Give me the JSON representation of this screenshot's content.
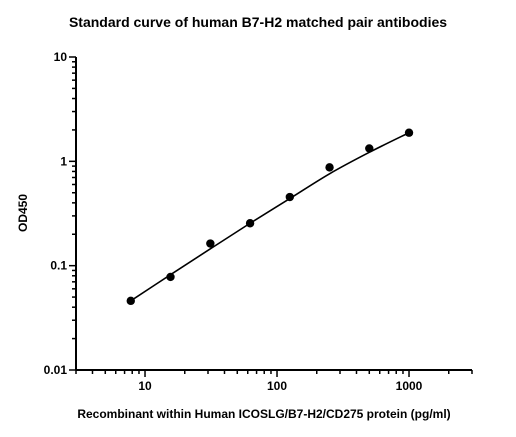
{
  "chart_data": {
    "type": "scatter",
    "title": "Standard curve of human B7-H2 matched pair antibodies",
    "xlabel": "Recombinant within Human ICOSLG/B7-H2/CD275 protein (pg/ml)",
    "ylabel": "OD450",
    "x_scale": "log",
    "y_scale": "log",
    "xlim": [
      3,
      3000
    ],
    "ylim": [
      0.01,
      10
    ],
    "x_ticks": [
      {
        "value": 10,
        "label": "10"
      },
      {
        "value": 100,
        "label": "100"
      },
      {
        "value": 1000,
        "label": "1000"
      }
    ],
    "y_ticks": [
      {
        "value": 0.01,
        "label": "0.01"
      },
      {
        "value": 0.1,
        "label": "0.1"
      },
      {
        "value": 1,
        "label": "1"
      },
      {
        "value": 10,
        "label": "10"
      }
    ],
    "grid": false,
    "legend": "none",
    "series": [
      {
        "x": [
          7.8,
          15.6,
          31.25,
          62.5,
          125,
          250,
          500,
          1000
        ],
        "y": [
          0.046,
          0.078,
          0.163,
          0.255,
          0.455,
          0.875,
          1.33,
          1.88
        ]
      }
    ],
    "fit_curve": {
      "x": [
        7.8,
        15.6,
        31.25,
        62.5,
        125,
        250,
        500,
        1000
      ],
      "y": [
        0.046,
        0.082,
        0.145,
        0.255,
        0.44,
        0.76,
        1.22,
        1.88
      ]
    }
  }
}
